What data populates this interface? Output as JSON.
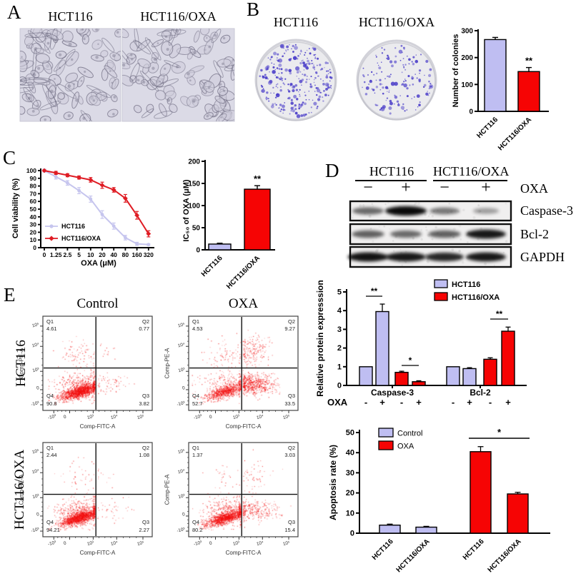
{
  "figure": {
    "panel_a": {
      "label": "A",
      "col_titles": [
        "HCT116",
        "HCT116/OXA"
      ]
    },
    "panel_b": {
      "label": "B",
      "col_titles": [
        "HCT116",
        "HCT116/OXA"
      ]
    },
    "panel_c": {
      "label": "C"
    },
    "panel_d": {
      "label": "D",
      "group_titles": [
        "HCT116",
        "HCT116/OXA"
      ],
      "lane_signs": [
        "−",
        "+",
        "−",
        "+"
      ],
      "treatment_label": "OXA",
      "band_labels": [
        "Caspase-3",
        "Bcl-2",
        "GAPDH"
      ],
      "band_intensities": {
        "caspase3": [
          0.5,
          1.0,
          0.42,
          0.22
        ],
        "bcl2": [
          0.55,
          0.5,
          0.55,
          0.92
        ],
        "gapdh": [
          0.95,
          0.92,
          0.85,
          0.92
        ]
      }
    },
    "panel_e": {
      "label": "E",
      "col_titles": [
        "Control",
        "OXA"
      ],
      "row_titles": [
        "HCT116",
        "HCT116/OXA"
      ],
      "x_axis_label": "Comp-FITC-A",
      "y_axis_label": "Comp-PE-A",
      "xticks": [
        "-10³",
        "0",
        "10³",
        "10⁴",
        "10⁵"
      ],
      "yticks": [
        "10⁵",
        "10⁴",
        "10³",
        "0",
        "-10³"
      ],
      "plots": [
        {
          "row": "HCT116",
          "col": "Control",
          "q1_name": "Q1",
          "q1_value": "4.61",
          "q2_name": "Q2",
          "q2_value": "0.77",
          "q3_name": "Q3",
          "q3_value": "3.82",
          "q4_name": "Q4",
          "q4_value": "90.8"
        },
        {
          "row": "HCT116",
          "col": "OXA",
          "q1_name": "Q1",
          "q1_value": "4.53",
          "q2_name": "Q2",
          "q2_value": "9.27",
          "q3_name": "Q3",
          "q3_value": "33.5",
          "q4_name": "Q4",
          "q4_value": "52.7"
        },
        {
          "row": "HCT116/OXA",
          "col": "Control",
          "q1_name": "Q1",
          "q1_value": "2.44",
          "q2_name": "Q2",
          "q2_value": "1.08",
          "q3_name": "Q3",
          "q3_value": "2.27",
          "q4_name": "Q4",
          "q4_value": "94.21"
        },
        {
          "row": "HCT116/OXA",
          "col": "OXA",
          "q1_name": "Q1",
          "q1_value": "1.37",
          "q2_name": "Q2",
          "q2_value": "3.03",
          "q3_name": "Q3",
          "q3_value": "15.4",
          "q4_name": "Q4",
          "q4_value": "80.2"
        }
      ]
    }
  },
  "chart_data": [
    {
      "id": "colonies",
      "type": "bar",
      "ylabel": "Number of colonies",
      "ylim": [
        0,
        300
      ],
      "yticks": [
        0,
        100,
        200,
        300
      ],
      "categories": [
        "HCT116",
        "HCT116/OXA"
      ],
      "values": [
        267,
        148
      ],
      "errors": [
        8,
        15
      ],
      "bar_colors": [
        "lavender",
        "red"
      ],
      "annotations": [
        "",
        "**"
      ]
    },
    {
      "id": "viability",
      "type": "line",
      "xlabel": "OXA (μM)",
      "ylabel": "Cell viability (%)",
      "ylim": [
        0,
        100
      ],
      "yticks": [
        0,
        10,
        20,
        30,
        40,
        50,
        60,
        70,
        80,
        90,
        100
      ],
      "categories": [
        "0",
        "1.25",
        "2.5",
        "5",
        "10",
        "20",
        "40",
        "80",
        "160",
        "320"
      ],
      "legend_position": "bottom-left",
      "series": [
        {
          "name": "HCT116",
          "color": "lavender",
          "values": [
            100,
            92,
            84,
            74,
            63,
            43,
            28,
            13,
            5,
            4
          ],
          "errors": [
            2,
            3,
            3,
            4,
            4,
            5,
            4,
            3,
            2,
            1
          ]
        },
        {
          "name": "HCT116/OXA",
          "color": "red",
          "values": [
            100,
            97,
            94,
            91,
            88,
            81,
            75,
            64,
            42,
            18
          ],
          "errors": [
            1,
            2,
            2,
            2,
            3,
            4,
            3,
            5,
            5,
            4
          ]
        }
      ]
    },
    {
      "id": "ic50",
      "type": "bar",
      "ylabel": "IC₅₀ of OXA (μM)",
      "ylim": [
        0,
        200
      ],
      "yticks": [
        0,
        50,
        100,
        150,
        200
      ],
      "categories": [
        "HCT116",
        "HCT116/OXA"
      ],
      "values": [
        13,
        137
      ],
      "errors": [
        2,
        8
      ],
      "bar_colors": [
        "lavender",
        "red"
      ],
      "annotations": [
        "",
        "**"
      ]
    },
    {
      "id": "protein_expression",
      "type": "bar",
      "ylabel": "Relative protein expresssion",
      "ylim": [
        0,
        5
      ],
      "yticks": [
        0,
        1,
        2,
        3,
        4,
        5
      ],
      "groups": [
        "Caspase-3",
        "Bcl-2"
      ],
      "legend": [
        "HCT116",
        "HCT116/OXA"
      ],
      "oxa_row_label": "OXA",
      "oxa_signs": [
        "-",
        "+",
        "-",
        "+",
        "-",
        "+",
        "-",
        "+"
      ],
      "values": [
        1.0,
        3.95,
        0.7,
        0.2,
        1.0,
        0.9,
        1.4,
        2.9
      ],
      "errors": [
        0,
        0.4,
        0.06,
        0.05,
        0,
        0.05,
        0.08,
        0.22
      ],
      "bar_colors": [
        "lavender",
        "lavender",
        "red",
        "red",
        "lavender",
        "lavender",
        "red",
        "red"
      ],
      "sig": [
        {
          "from": 0,
          "to": 1,
          "label": "**"
        },
        {
          "from": 2,
          "to": 3,
          "label": "*"
        },
        {
          "from": 6,
          "to": 7,
          "label": "**"
        }
      ]
    },
    {
      "id": "apoptosis_rate",
      "type": "bar",
      "ylabel": "Apoptosis rate (%)",
      "ylim": [
        0,
        50
      ],
      "yticks": [
        0,
        10,
        20,
        30,
        40,
        50
      ],
      "categories": [
        "HCT116",
        "HCT116/OXA",
        "HCT116",
        "HCT116/OXA"
      ],
      "legend": [
        "Control",
        "OXA"
      ],
      "values": [
        4,
        3,
        40.5,
        19.5
      ],
      "errors": [
        0.5,
        0.4,
        2.5,
        0.8
      ],
      "bar_colors": [
        "lavender",
        "lavender",
        "red",
        "red"
      ],
      "sig": [
        {
          "from": 2,
          "to": 3,
          "label": "*"
        }
      ]
    }
  ],
  "colors": {
    "lavender": "#bfbef2",
    "red": "#f60404",
    "line_red": "#df1c24",
    "line_lavender": "#c6c5ee",
    "colony_dot": "#4b3ec9",
    "scatter_red": "#f20d0d",
    "micro_bg": "#dbdae6",
    "dish_bg": "#ebebee"
  }
}
